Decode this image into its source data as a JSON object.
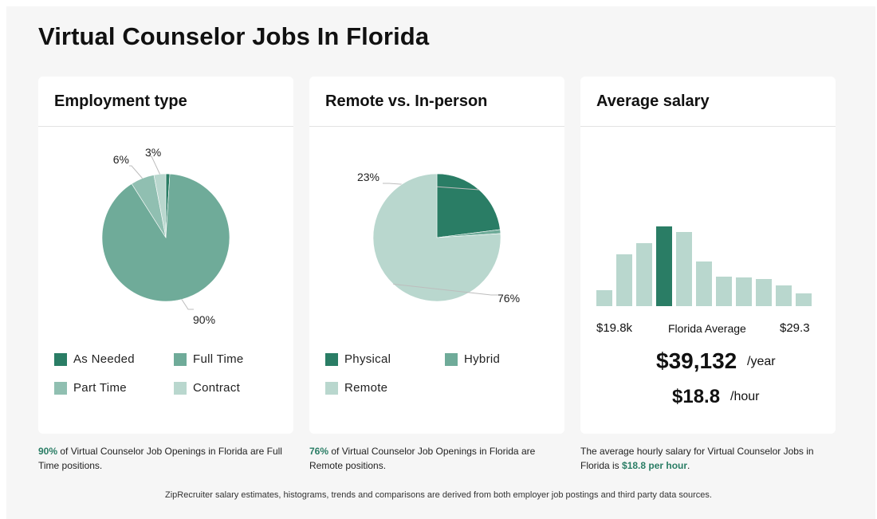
{
  "page": {
    "title": "Virtual Counselor Jobs In Florida",
    "footnote": "ZipRecruiter salary estimates, histograms, trends and comparisons are derived from both employer job postings and third party data sources."
  },
  "colors": {
    "dark_green": "#2a7d65",
    "mid_green": "#6fab99",
    "light_mid_green": "#90bfb1",
    "pale_green": "#b9d7ce"
  },
  "employment": {
    "title": "Employment type",
    "caption_highlight": "90%",
    "caption_text": " of Virtual Counselor Job Openings in Florida are Full Time positions.",
    "legend": [
      "As Needed",
      "Full Time",
      "Part Time",
      "Contract"
    ]
  },
  "remote": {
    "title": "Remote vs. In-person",
    "caption_highlight": "76%",
    "caption_text": " of Virtual Counselor Job Openings in Florida are Remote positions.",
    "legend": [
      "Physical",
      "Hybrid",
      "Remote"
    ]
  },
  "salary": {
    "title": "Average salary",
    "low_label": "$19.8k",
    "mid_label": "Florida Average",
    "high_label": "$29.3",
    "yearly_value": "$39,132",
    "yearly_unit": "/year",
    "hourly_value": "$18.8",
    "hourly_unit": "/hour",
    "caption_text": "The average hourly salary for Virtual Counselor Jobs in Florida is ",
    "caption_highlight": "$18.8 per hour",
    "caption_end": "."
  },
  "chart_data": [
    {
      "type": "pie",
      "title": "Employment type",
      "series": [
        {
          "name": "As Needed",
          "value": 1,
          "label": ""
        },
        {
          "name": "Full Time",
          "value": 90,
          "label": "90%"
        },
        {
          "name": "Part Time",
          "value": 6,
          "label": "6%"
        },
        {
          "name": "Contract",
          "value": 3,
          "label": "3%"
        }
      ]
    },
    {
      "type": "pie",
      "title": "Remote vs. In-person",
      "series": [
        {
          "name": "Physical",
          "value": 23,
          "label": "23%"
        },
        {
          "name": "Hybrid",
          "value": 1,
          "label": ""
        },
        {
          "name": "Remote",
          "value": 76,
          "label": "76%"
        }
      ]
    },
    {
      "type": "bar",
      "title": "Average salary",
      "values": [
        20,
        65,
        79,
        100,
        93,
        56,
        37,
        36,
        34,
        26,
        16
      ],
      "highlight_index": 3,
      "ylim": [
        0,
        100
      ]
    }
  ]
}
